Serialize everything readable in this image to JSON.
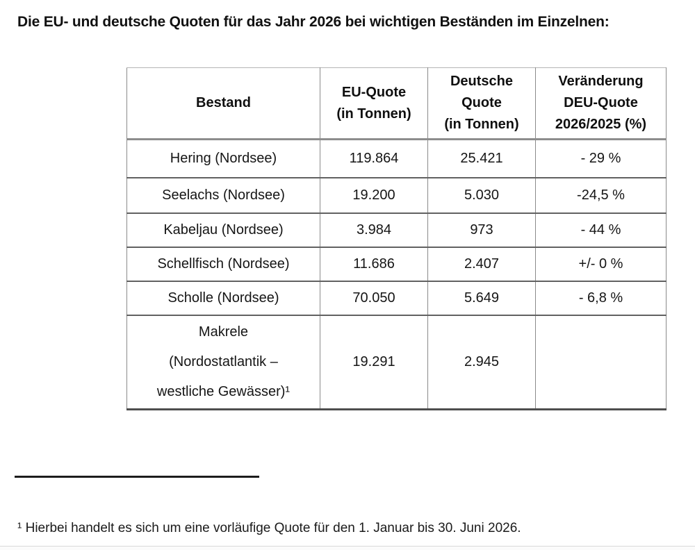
{
  "page": {
    "title": "Die EU- und deutsche Quoten für das Jahr 2026 bei wichtigen Beständen im Einzelnen:"
  },
  "table": {
    "columns": {
      "bestand": "Bestand",
      "eu": "EU-Quote\n(in Tonnen)",
      "deu": "Deutsche\nQuote\n(in Tonnen)",
      "change": "Veränderung\nDEU-Quote\n2026/2025 (%)"
    },
    "rows": [
      {
        "bestand": "Hering (Nordsee)",
        "eu": "119.864",
        "deu": "25.421",
        "change": "- 29 %"
      },
      {
        "bestand": "Seelachs (Nordsee)",
        "eu": "19.200",
        "deu": "5.030",
        "change": "-24,5 %"
      },
      {
        "bestand": "Kabeljau (Nordsee)",
        "eu": "3.984",
        "deu": "973",
        "change": "- 44 %"
      },
      {
        "bestand": "Schellfisch (Nordsee)",
        "eu": "11.686",
        "deu": "2.407",
        "change": "+/- 0 %"
      },
      {
        "bestand": "Scholle (Nordsee)",
        "eu": "70.050",
        "deu": "5.649",
        "change": "- 6,8 %"
      },
      {
        "bestand": "Makrele\n(Nordostatlantik –\nwestliche Gewässer)¹",
        "eu": "19.291",
        "deu": "2.945",
        "change": ""
      }
    ]
  },
  "footnote": {
    "text": "¹ Hierbei handelt es sich um eine vorläufige Quote für den 1. Januar bis 30. Juni 2026."
  }
}
